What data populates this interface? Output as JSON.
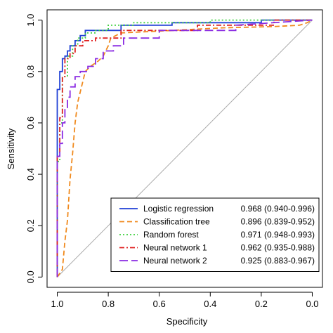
{
  "chart_data": {
    "type": "line",
    "title": "",
    "xlabel": "Specificity",
    "ylabel": "Sensitivity",
    "xlim": [
      1.0,
      0.0
    ],
    "ylim": [
      0.0,
      1.0
    ],
    "x_reversed": true,
    "x_ticks": [
      "1.0",
      "0.8",
      "0.6",
      "0.4",
      "0.2",
      "0.0"
    ],
    "x_tick_values": [
      1.0,
      0.8,
      0.6,
      0.4,
      0.2,
      0.0
    ],
    "y_ticks": [
      "0.0",
      "0.2",
      "0.4",
      "0.6",
      "0.8",
      "1.0"
    ],
    "y_tick_values": [
      0.0,
      0.2,
      0.4,
      0.6,
      0.8,
      1.0
    ],
    "grid": false,
    "legend_position": "bottom-right",
    "reference_line": {
      "x": [
        1.0,
        0.0
      ],
      "y": [
        0.0,
        1.0
      ],
      "color": "#aaaaaa"
    },
    "series": [
      {
        "name": "Logistic regression",
        "auc": "0.968 (0.940-0.996)",
        "color": "#1f3fd6",
        "dash": "solid",
        "x": [
          1.0,
          1.0,
          0.99,
          0.99,
          0.98,
          0.98,
          0.97,
          0.97,
          0.96,
          0.96,
          0.95,
          0.95,
          0.93,
          0.93,
          0.91,
          0.91,
          0.89,
          0.89,
          0.86,
          0.86,
          0.75,
          0.75,
          0.55,
          0.55,
          0.2,
          0.2,
          0.0
        ],
        "y": [
          0.0,
          0.73,
          0.73,
          0.8,
          0.8,
          0.85,
          0.85,
          0.86,
          0.86,
          0.88,
          0.88,
          0.9,
          0.9,
          0.92,
          0.92,
          0.94,
          0.94,
          0.96,
          0.96,
          0.96,
          0.96,
          0.98,
          0.98,
          0.99,
          0.99,
          1.0,
          1.0
        ]
      },
      {
        "name": "Classification tree",
        "auc": "0.896 (0.839-0.952)",
        "color": "#f08a1e",
        "dash": "dashed",
        "x": [
          1.0,
          0.98,
          0.97,
          0.96,
          0.95,
          0.94,
          0.93,
          0.92,
          0.91,
          0.9,
          0.89,
          0.87,
          0.84,
          0.82,
          0.8,
          0.79,
          0.77,
          0.75,
          0.55,
          0.35,
          0.15,
          0.05,
          0.02,
          0.0
        ],
        "y": [
          0.0,
          0.03,
          0.14,
          0.22,
          0.38,
          0.48,
          0.6,
          0.68,
          0.72,
          0.76,
          0.8,
          0.82,
          0.84,
          0.86,
          0.9,
          0.93,
          0.94,
          0.95,
          0.96,
          0.97,
          0.975,
          0.98,
          0.99,
          1.0
        ]
      },
      {
        "name": "Random forest",
        "auc": "0.971 (0.948-0.993)",
        "color": "#3fd13f",
        "dash": "dotted",
        "x": [
          1.0,
          1.0,
          0.99,
          0.99,
          0.98,
          0.98,
          0.96,
          0.96,
          0.94,
          0.94,
          0.92,
          0.92,
          0.89,
          0.89,
          0.85,
          0.85,
          0.8,
          0.8,
          0.7,
          0.7,
          0.4,
          0.4,
          0.0
        ],
        "y": [
          0.0,
          0.45,
          0.45,
          0.6,
          0.6,
          0.78,
          0.78,
          0.86,
          0.86,
          0.9,
          0.9,
          0.93,
          0.93,
          0.95,
          0.95,
          0.96,
          0.96,
          0.98,
          0.98,
          0.99,
          0.99,
          1.0,
          1.0
        ]
      },
      {
        "name": "Neural network 1",
        "auc": "0.962 (0.935-0.988)",
        "color": "#e02020",
        "dash": "dashdot",
        "x": [
          1.0,
          1.0,
          0.99,
          0.99,
          0.98,
          0.98,
          0.97,
          0.97,
          0.95,
          0.95,
          0.93,
          0.93,
          0.9,
          0.9,
          0.85,
          0.85,
          0.75,
          0.75,
          0.45,
          0.45,
          0.15,
          0.15,
          0.0
        ],
        "y": [
          0.0,
          0.47,
          0.47,
          0.62,
          0.62,
          0.78,
          0.78,
          0.85,
          0.85,
          0.87,
          0.87,
          0.9,
          0.9,
          0.92,
          0.92,
          0.93,
          0.93,
          0.96,
          0.96,
          0.98,
          0.98,
          1.0,
          1.0
        ]
      },
      {
        "name": "Neural network 2",
        "auc": "0.925 (0.883-0.967)",
        "color": "#8a2be2",
        "dash": "longdash",
        "x": [
          1.0,
          1.0,
          0.99,
          0.99,
          0.98,
          0.98,
          0.97,
          0.97,
          0.96,
          0.96,
          0.95,
          0.95,
          0.93,
          0.93,
          0.91,
          0.91,
          0.88,
          0.88,
          0.85,
          0.85,
          0.82,
          0.82,
          0.78,
          0.78,
          0.74,
          0.74,
          0.6,
          0.6,
          0.3,
          0.3,
          0.0
        ],
        "y": [
          0.0,
          0.47,
          0.47,
          0.52,
          0.52,
          0.6,
          0.6,
          0.66,
          0.66,
          0.7,
          0.7,
          0.74,
          0.74,
          0.78,
          0.78,
          0.8,
          0.8,
          0.82,
          0.82,
          0.85,
          0.85,
          0.88,
          0.88,
          0.9,
          0.9,
          0.93,
          0.93,
          0.96,
          0.96,
          0.98,
          1.0
        ]
      }
    ]
  }
}
